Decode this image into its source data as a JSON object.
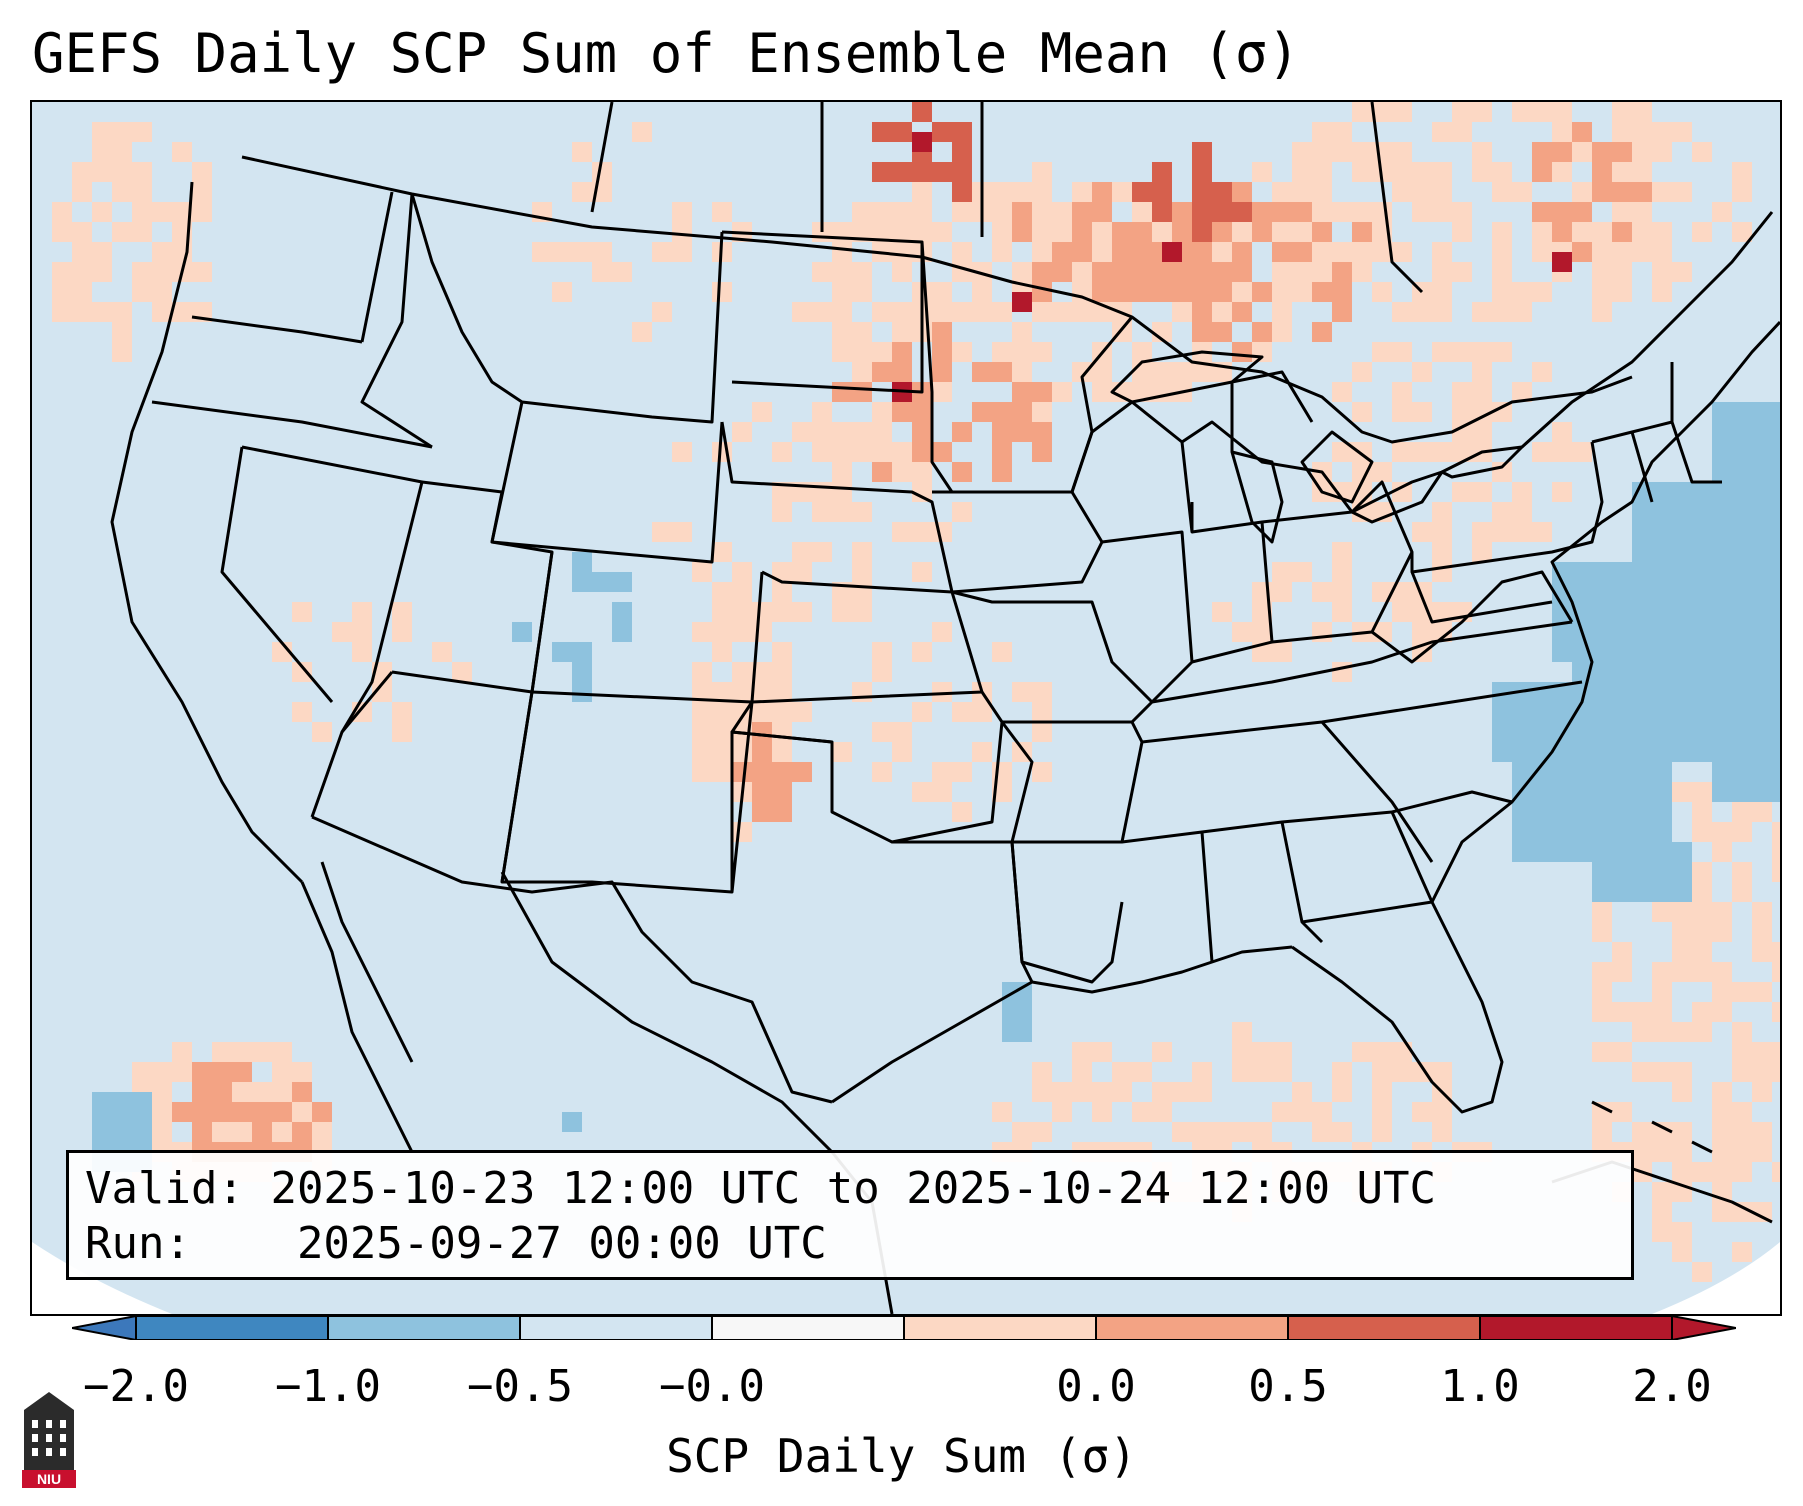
{
  "title": "GEFS Daily SCP Sum of Ensemble Mean (σ)",
  "info": {
    "valid_label": "Valid:",
    "valid_value": "2025-10-23 12:00 UTC to 2025-10-24 12:00 UTC",
    "run_label": "Run:",
    "run_value": "2025-09-27 00:00 UTC"
  },
  "colorbar": {
    "label": "SCP Daily Sum (σ)",
    "tick_labels": [
      "−2.0",
      "−1.0",
      "−0.5",
      "−0.0",
      "0.0",
      "0.5",
      "1.0",
      "2.0"
    ],
    "bin_colors": [
      "#3f87c0",
      "#8ec2de",
      "#d3e5f1",
      "#f7f7f7",
      "#fcd8c4",
      "#f3a384",
      "#d6604d",
      "#b2182b"
    ],
    "under_color": "#3c78bb",
    "over_color": "#b2182b"
  },
  "map": {
    "region": "CONUS",
    "land_color": "#d3e5f1",
    "pale_color": "#fcd8c4",
    "salmon_color": "#f3a384",
    "red_color": "#d6604d",
    "dark_red_color": "#b2182b",
    "blue_color": "#8ec2de",
    "border_color": "#000000"
  },
  "logo": {
    "name": "niu-logo",
    "text": "NIU"
  }
}
